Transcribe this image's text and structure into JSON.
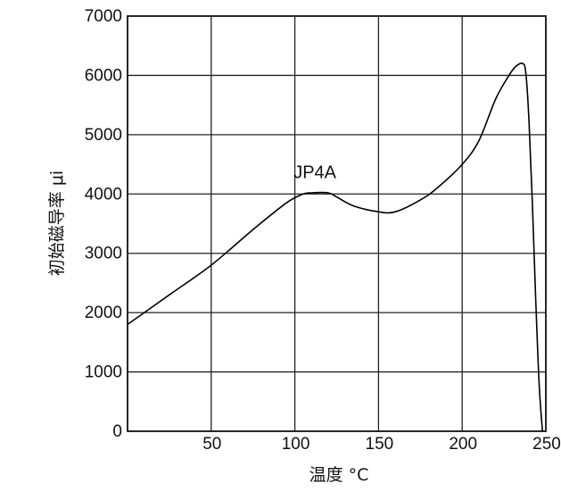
{
  "chart_data": {
    "type": "line",
    "title": "",
    "xlabel": "温度 °C",
    "ylabel": "初始磁导率 μi",
    "xlim": [
      0,
      250
    ],
    "ylim": [
      0,
      7000
    ],
    "x_ticks": [
      50,
      100,
      150,
      200,
      250
    ],
    "x_tick_labels": [
      "50",
      "100",
      "150",
      "200",
      "250"
    ],
    "y_ticks": [
      0,
      1000,
      2000,
      3000,
      4000,
      5000,
      6000,
      7000
    ],
    "y_tick_labels": [
      "0",
      "1000",
      "2000",
      "3000",
      "4000",
      "5000",
      "6000",
      "7000"
    ],
    "grid": true,
    "series": [
      {
        "name": "JP4A",
        "color": "#000000",
        "x": [
          0,
          25,
          50,
          75,
          95,
          105,
          110,
          120,
          125,
          135,
          150,
          160,
          175,
          185,
          200,
          210,
          220,
          228,
          232,
          236,
          238,
          240,
          242,
          244,
          246,
          248
        ],
        "y": [
          1800,
          2300,
          2800,
          3400,
          3850,
          4000,
          4020,
          4020,
          3950,
          3800,
          3700,
          3700,
          3900,
          4100,
          4500,
          4900,
          5600,
          6000,
          6150,
          6200,
          6050,
          5200,
          3800,
          2200,
          800,
          0
        ]
      }
    ]
  }
}
